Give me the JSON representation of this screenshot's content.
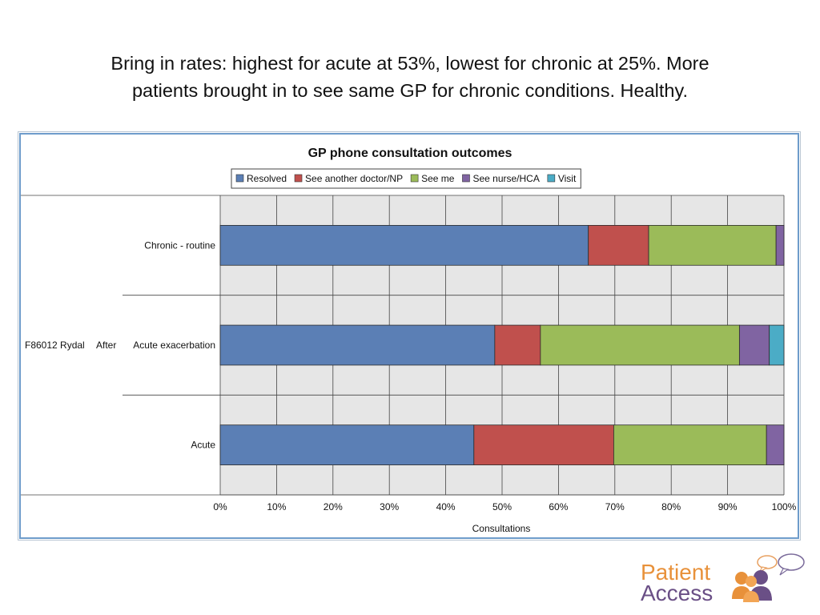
{
  "slide": {
    "title_line1": "Bring in rates:  highest for acute at 53%, lowest for chronic at 25%.  More",
    "title_line2": "patients brought in to see same GP for chronic conditions.  Healthy."
  },
  "logo": {
    "line1": "Patient",
    "line2": "Access",
    "colors": {
      "orange": "#e8913a",
      "purple": "#6a4f86"
    }
  },
  "chart_data": {
    "type": "bar",
    "orientation": "horizontal",
    "stacked": true,
    "percent": true,
    "title": "GP phone consultation outcomes",
    "xlabel": "Consultations",
    "ylabel": "",
    "xlim": [
      0,
      100
    ],
    "x_ticks": [
      "0%",
      "10%",
      "20%",
      "30%",
      "40%",
      "50%",
      "60%",
      "70%",
      "80%",
      "90%",
      "100%"
    ],
    "grid": true,
    "legend_position": "top",
    "group_label_parts": [
      "F86012 Rydal",
      "After"
    ],
    "categories": [
      "Chronic - routine",
      "Acute exacerbation",
      "Acute"
    ],
    "series": [
      {
        "name": "Resolved",
        "color": "#5b7fb5",
        "values": [
          65.3,
          48.7,
          45.0
        ]
      },
      {
        "name": "See another doctor/NP",
        "color": "#c0504d",
        "values": [
          10.7,
          8.1,
          24.8
        ]
      },
      {
        "name": "See me",
        "color": "#9bbb59",
        "values": [
          22.6,
          35.3,
          27.1
        ]
      },
      {
        "name": "See nurse/HCA",
        "color": "#8064a2",
        "values": [
          1.4,
          5.3,
          3.1
        ]
      },
      {
        "name": "Visit",
        "color": "#4bacc6",
        "values": [
          0,
          2.6,
          0
        ]
      }
    ]
  }
}
